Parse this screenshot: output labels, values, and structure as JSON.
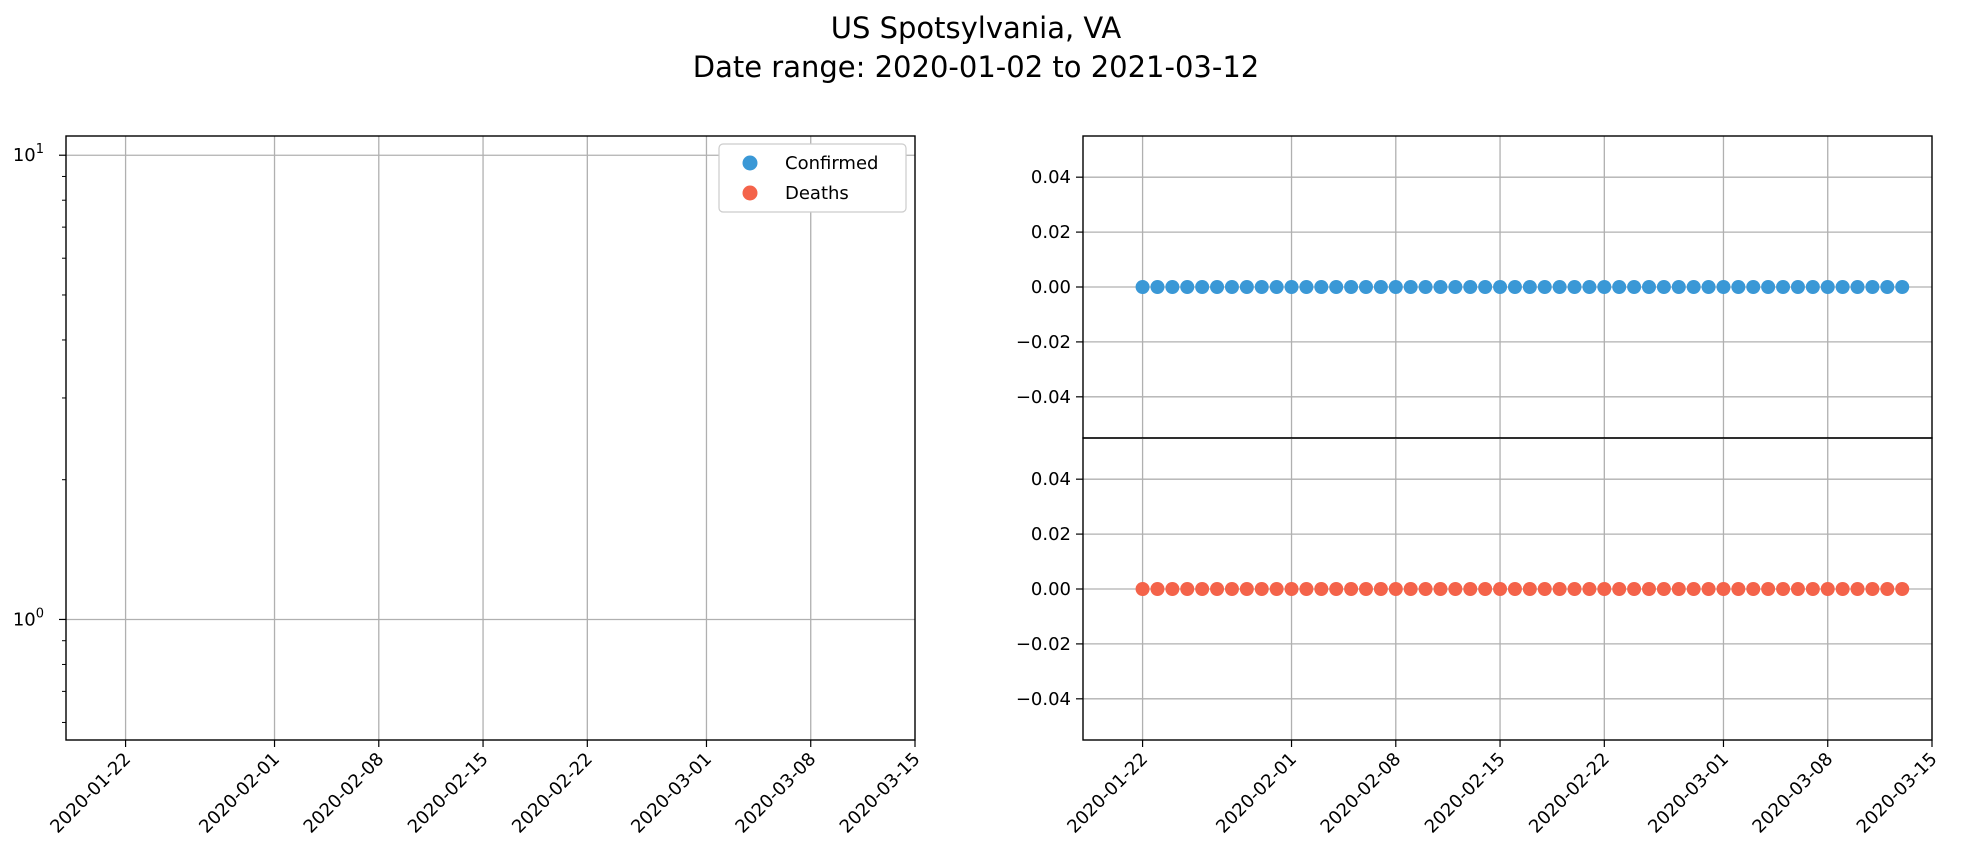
{
  "figure": {
    "title_line1": "US Spotsylvania, VA",
    "title_line2": "Date range: 2020-01-02 to 2021-03-12"
  },
  "chart_data": [
    {
      "type": "scatter",
      "panel": "left",
      "yscale": "log",
      "ylim": [
        0.55,
        11
      ],
      "xlim": [
        "2020-01-18",
        "2020-03-15"
      ],
      "grid": true,
      "y_ticks": [
        1,
        10
      ],
      "y_tick_labels": [
        {
          "base": "10",
          "exp": "0"
        },
        {
          "base": "10",
          "exp": "1"
        }
      ],
      "x_ticks": [
        "2020-01-22",
        "2020-02-01",
        "2020-02-08",
        "2020-02-15",
        "2020-02-22",
        "2020-03-01",
        "2020-03-08",
        "2020-03-15"
      ],
      "legend": {
        "placement": "upper-right",
        "entries": [
          {
            "label": "Confirmed",
            "color": "#3a98d6"
          },
          {
            "label": "Deaths",
            "color": "#f4634a"
          }
        ]
      },
      "series": [
        {
          "name": "Confirmed",
          "color": "#3a98d6",
          "x": [],
          "y": []
        },
        {
          "name": "Deaths",
          "color": "#f4634a",
          "x": [],
          "y": []
        }
      ]
    },
    {
      "type": "scatter",
      "panel": "right-top",
      "ylim": [
        -0.055,
        0.055
      ],
      "y_ticks": [
        -0.04,
        -0.02,
        0.0,
        0.02,
        0.04
      ],
      "y_tick_labels": [
        "−0.04",
        "−0.02",
        "0.00",
        "0.02",
        "0.04"
      ],
      "xlim": [
        "2020-01-18",
        "2020-03-15"
      ],
      "grid": true,
      "series": [
        {
          "name": "Confirmed",
          "color": "#3a98d6",
          "x_start": "2020-01-22",
          "x_end": "2020-03-13",
          "value": 0,
          "count": 52
        }
      ]
    },
    {
      "type": "scatter",
      "panel": "right-bottom",
      "ylim": [
        -0.055,
        0.055
      ],
      "y_ticks": [
        -0.04,
        -0.02,
        0.0,
        0.02,
        0.04
      ],
      "y_tick_labels": [
        "−0.04",
        "−0.02",
        "0.00",
        "0.02",
        "0.04"
      ],
      "xlim": [
        "2020-01-18",
        "2020-03-15"
      ],
      "x_ticks": [
        "2020-01-22",
        "2020-02-01",
        "2020-02-08",
        "2020-02-15",
        "2020-02-22",
        "2020-03-01",
        "2020-03-08",
        "2020-03-15"
      ],
      "grid": true,
      "series": [
        {
          "name": "Deaths",
          "color": "#f4634a",
          "x_start": "2020-01-22",
          "x_end": "2020-03-13",
          "value": 0,
          "count": 52
        }
      ]
    }
  ]
}
